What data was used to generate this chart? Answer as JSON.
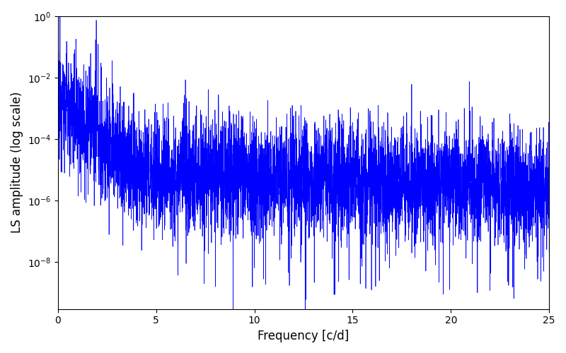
{
  "title": "",
  "xlabel": "Frequency [c/d]",
  "ylabel": "LS amplitude (log scale)",
  "xlim": [
    0,
    25
  ],
  "ylim": [
    3e-10,
    1
  ],
  "xticks": [
    0,
    5,
    10,
    15,
    20,
    25
  ],
  "yticks_min": 1e-09,
  "yticks_max": 0.1,
  "line_color": "#0000ff",
  "line_width": 0.5,
  "figsize": [
    8.0,
    5.0
  ],
  "dpi": 100,
  "seed": 12345,
  "n_points": 5000,
  "freq_max": 25.0,
  "background_color": "#ffffff"
}
